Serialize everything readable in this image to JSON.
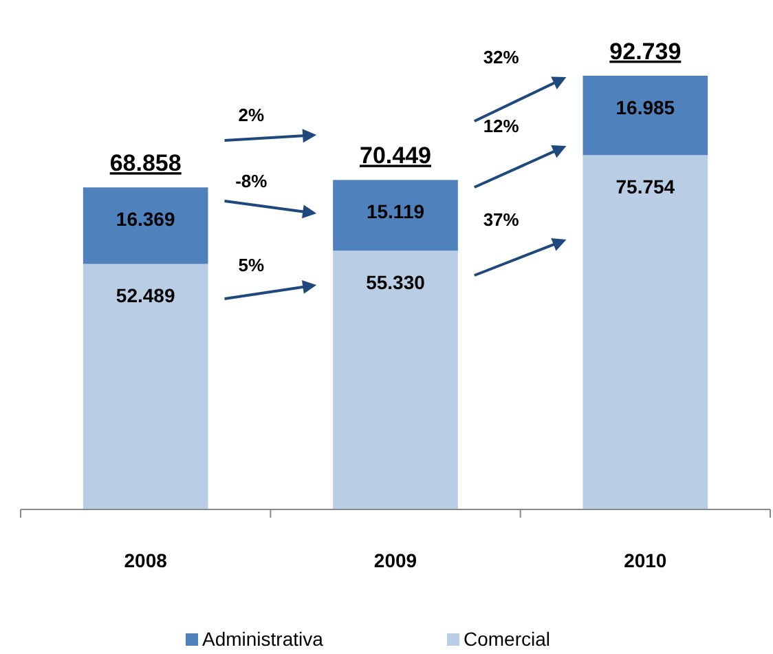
{
  "chart_data": {
    "type": "bar",
    "stacked": true,
    "categories": [
      "2008",
      "2009",
      "2010"
    ],
    "series": [
      {
        "name": "Comercial",
        "color": "#b9cde5",
        "values": [
          52489,
          55330,
          75754
        ],
        "value_labels": [
          "52.489",
          "55.330",
          "75.754"
        ]
      },
      {
        "name": "Administrativa",
        "color": "#4f81bd",
        "values": [
          16369,
          15119,
          16985
        ],
        "value_labels": [
          "16.369",
          "15.119",
          "16.985"
        ]
      }
    ],
    "totals": [
      "68.858",
      "70.449",
      "92.739"
    ],
    "annotations": [
      "2%",
      "-8%",
      "5%",
      "32%",
      "12%",
      "37%"
    ],
    "legend": "bottom"
  }
}
